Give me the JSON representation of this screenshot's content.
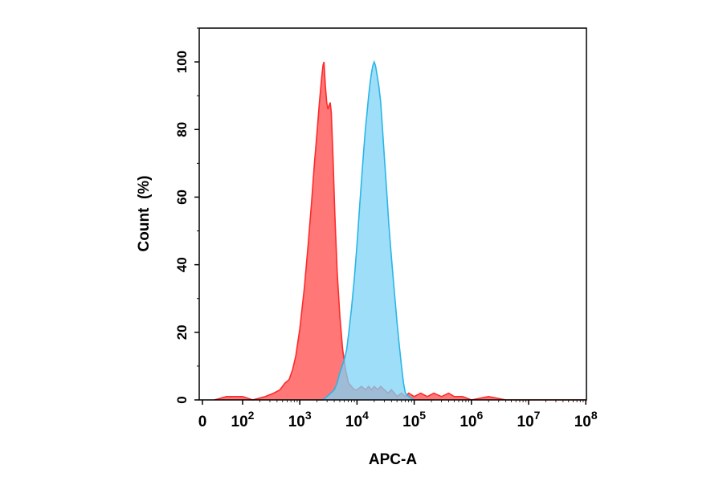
{
  "chart_data": {
    "type": "area",
    "xlabel": "APC-A",
    "ylabel": "Count  (%)",
    "xscale": "biexponential (0 then log decades)",
    "xlim": [
      0,
      100000000
    ],
    "ylim": [
      0,
      110
    ],
    "grid": false,
    "legend": "none",
    "x_ticks": [
      {
        "base": "0",
        "exp": ""
      },
      {
        "base": "10",
        "exp": "2"
      },
      {
        "base": "10",
        "exp": "3"
      },
      {
        "base": "10",
        "exp": "4"
      },
      {
        "base": "10",
        "exp": "5"
      },
      {
        "base": "10",
        "exp": "6"
      },
      {
        "base": "10",
        "exp": "7"
      },
      {
        "base": "10",
        "exp": "8"
      }
    ],
    "y_ticks": [
      "0",
      "20",
      "40",
      "60",
      "80",
      "100"
    ],
    "y_tick_values": [
      0,
      20,
      40,
      60,
      80,
      100
    ],
    "series": [
      {
        "color": "#ff2a2a",
        "fill": "#ff7070",
        "points": [
          [
            30,
            0
          ],
          [
            60,
            1
          ],
          [
            100,
            1
          ],
          [
            150,
            0
          ],
          [
            250,
            1
          ],
          [
            350,
            2
          ],
          [
            450,
            3
          ],
          [
            550,
            5
          ],
          [
            650,
            6
          ],
          [
            750,
            9
          ],
          [
            850,
            13
          ],
          [
            1000,
            21
          ],
          [
            1200,
            33
          ],
          [
            1400,
            46
          ],
          [
            1600,
            58
          ],
          [
            1800,
            70
          ],
          [
            2000,
            79
          ],
          [
            2200,
            88
          ],
          [
            2400,
            95
          ],
          [
            2550,
            99
          ],
          [
            2650,
            100
          ],
          [
            2800,
            93
          ],
          [
            2950,
            88
          ],
          [
            3100,
            86
          ],
          [
            3250,
            87
          ],
          [
            3400,
            88
          ],
          [
            3550,
            85
          ],
          [
            3800,
            72
          ],
          [
            4100,
            55
          ],
          [
            4500,
            38
          ],
          [
            5000,
            25
          ],
          [
            5600,
            15
          ],
          [
            6300,
            9
          ],
          [
            7100,
            5
          ],
          [
            8000,
            4
          ],
          [
            9000,
            3
          ],
          [
            10000,
            3
          ],
          [
            12000,
            4
          ],
          [
            14000,
            3
          ],
          [
            16000,
            4
          ],
          [
            18000,
            3
          ],
          [
            20000,
            4
          ],
          [
            23000,
            3
          ],
          [
            26000,
            4
          ],
          [
            30000,
            3
          ],
          [
            35000,
            2
          ],
          [
            40000,
            3
          ],
          [
            45000,
            2
          ],
          [
            50000,
            1
          ],
          [
            60000,
            2
          ],
          [
            70000,
            1
          ],
          [
            80000,
            2
          ],
          [
            100000,
            1
          ],
          [
            130000,
            2
          ],
          [
            170000,
            1
          ],
          [
            220000,
            2
          ],
          [
            300000,
            1
          ],
          [
            400000,
            2
          ],
          [
            500000,
            1
          ],
          [
            700000,
            1
          ],
          [
            1000000,
            0
          ],
          [
            2000000,
            1
          ],
          [
            4000000,
            0
          ],
          [
            8000000,
            0
          ],
          [
            100000000,
            0
          ]
        ]
      },
      {
        "color": "#29b6e8",
        "fill": "#7fd3f5",
        "points": [
          [
            2000,
            0
          ],
          [
            2500,
            0
          ],
          [
            3000,
            1
          ],
          [
            3500,
            2
          ],
          [
            4000,
            3
          ],
          [
            4500,
            5
          ],
          [
            5000,
            8
          ],
          [
            5500,
            10
          ],
          [
            6000,
            12
          ],
          [
            6600,
            15
          ],
          [
            7200,
            20
          ],
          [
            8000,
            27
          ],
          [
            9000,
            36
          ],
          [
            10000,
            46
          ],
          [
            11000,
            56
          ],
          [
            12000,
            65
          ],
          [
            13000,
            73
          ],
          [
            14000,
            80
          ],
          [
            15000,
            85
          ],
          [
            16000,
            90
          ],
          [
            17000,
            94
          ],
          [
            18000,
            97
          ],
          [
            19000,
            99
          ],
          [
            20000,
            100
          ],
          [
            21000,
            99
          ],
          [
            22000,
            97
          ],
          [
            24000,
            93
          ],
          [
            26000,
            88
          ],
          [
            28000,
            80
          ],
          [
            30000,
            72
          ],
          [
            33000,
            62
          ],
          [
            36000,
            52
          ],
          [
            40000,
            42
          ],
          [
            45000,
            32
          ],
          [
            50000,
            23
          ],
          [
            55000,
            16
          ],
          [
            60000,
            10
          ],
          [
            65000,
            5
          ],
          [
            70000,
            2
          ],
          [
            80000,
            1
          ],
          [
            100000,
            0
          ]
        ]
      }
    ]
  }
}
